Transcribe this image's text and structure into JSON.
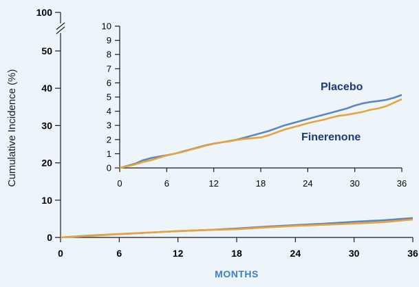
{
  "colors": {
    "background": "#edf5fb",
    "axis": "#1a1a1a",
    "placebo": "#5b86c2",
    "finerenone": "#e8a33a",
    "label_text": "#1b3a7a",
    "xlabel_text": "#3b7fc4"
  },
  "chart_data": [
    {
      "type": "line",
      "role": "main",
      "xlabel": "MONTHS",
      "ylabel": "Cumulative Incidence (%)",
      "xlim": [
        0,
        36
      ],
      "ylim": [
        0,
        55
      ],
      "axis_break": true,
      "grid": false,
      "x_ticks": [
        "0",
        "6",
        "12",
        "18",
        "24",
        "30",
        "36"
      ],
      "y_ticks": [
        "0",
        "10",
        "20",
        "30",
        "40",
        "50",
        "100"
      ],
      "x": [
        0,
        3,
        6,
        9,
        12,
        15,
        18,
        21,
        24,
        27,
        30,
        33,
        36
      ],
      "series": [
        {
          "name": "Placebo",
          "color": "#5b86c2",
          "values": [
            0,
            0.5,
            0.9,
            1.3,
            1.7,
            2.0,
            2.4,
            2.9,
            3.3,
            3.7,
            4.2,
            4.6,
            5.2
          ]
        },
        {
          "name": "Finerenone",
          "color": "#e8a33a",
          "values": [
            0,
            0.4,
            0.9,
            1.3,
            1.7,
            2.0,
            2.2,
            2.7,
            3.1,
            3.4,
            3.7,
            4.1,
            4.8
          ]
        }
      ]
    },
    {
      "type": "line",
      "role": "inset",
      "xlabel": "",
      "ylabel": "",
      "xlim": [
        0,
        36
      ],
      "ylim": [
        0,
        10
      ],
      "grid": false,
      "x_ticks": [
        "0",
        "6",
        "12",
        "18",
        "24",
        "30",
        "36"
      ],
      "y_ticks": [
        "0",
        "1",
        "2",
        "3",
        "4",
        "5",
        "6",
        "7",
        "8",
        "9",
        "10"
      ],
      "labels": {
        "placebo": "Placebo",
        "finerenone": "Finerenone"
      },
      "x": [
        0,
        1,
        2,
        3,
        4,
        5,
        6,
        7,
        8,
        9,
        10,
        11,
        12,
        13,
        14,
        15,
        16,
        17,
        18,
        19,
        20,
        21,
        22,
        23,
        24,
        25,
        26,
        27,
        28,
        29,
        30,
        31,
        32,
        33,
        34,
        35,
        36
      ],
      "series": [
        {
          "name": "Placebo",
          "color": "#5b86c2",
          "values": [
            0,
            0.15,
            0.3,
            0.55,
            0.7,
            0.8,
            0.9,
            1.0,
            1.15,
            1.3,
            1.45,
            1.6,
            1.72,
            1.8,
            1.9,
            2.0,
            2.15,
            2.3,
            2.45,
            2.6,
            2.8,
            3.0,
            3.15,
            3.3,
            3.45,
            3.6,
            3.75,
            3.9,
            4.05,
            4.2,
            4.4,
            4.55,
            4.65,
            4.72,
            4.8,
            4.95,
            5.15
          ]
        },
        {
          "name": "Finerenone",
          "color": "#e8a33a",
          "values": [
            0,
            0.12,
            0.25,
            0.42,
            0.55,
            0.72,
            0.88,
            1.0,
            1.12,
            1.28,
            1.42,
            1.58,
            1.7,
            1.8,
            1.88,
            1.98,
            2.05,
            2.1,
            2.15,
            2.3,
            2.5,
            2.7,
            2.85,
            3.0,
            3.15,
            3.28,
            3.4,
            3.55,
            3.68,
            3.75,
            3.85,
            3.95,
            4.1,
            4.2,
            4.35,
            4.6,
            4.85
          ]
        }
      ]
    }
  ]
}
